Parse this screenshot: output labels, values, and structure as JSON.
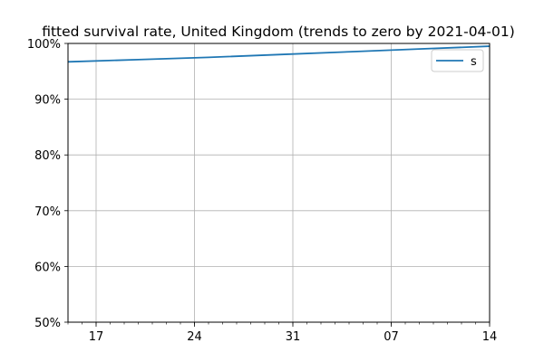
{
  "chart_data": {
    "type": "line",
    "title": "fitted survival rate, United Kingdom (trends to zero by 2021-04-01)",
    "xlabel": "",
    "ylabel": "",
    "x_range": [
      "2020-12-15",
      "2021-01-14"
    ],
    "ylim": [
      50,
      100
    ],
    "y_tick_format": "percent",
    "y_ticks": [
      "50%",
      "60%",
      "70%",
      "80%",
      "90%",
      "100%"
    ],
    "x_ticks": [
      {
        "date": "2020-12-17",
        "label": "17"
      },
      {
        "date": "2020-12-24",
        "label": "24"
      },
      {
        "date": "2020-12-31",
        "label": "31"
      },
      {
        "date": "2021-01-07",
        "label": "07"
      },
      {
        "date": "2021-01-14",
        "label": "14"
      }
    ],
    "grid": true,
    "legend_position": "upper right",
    "series": [
      {
        "name": "s",
        "color": "#1f77b4",
        "points": [
          {
            "x": "2020-12-15",
            "y": 96.7
          },
          {
            "x": "2020-12-20",
            "y": 97.1
          },
          {
            "x": "2020-12-25",
            "y": 97.5
          },
          {
            "x": "2020-12-30",
            "y": 98.0
          },
          {
            "x": "2021-01-04",
            "y": 98.5
          },
          {
            "x": "2021-01-09",
            "y": 99.0
          },
          {
            "x": "2021-01-14",
            "y": 99.5
          }
        ]
      }
    ]
  }
}
